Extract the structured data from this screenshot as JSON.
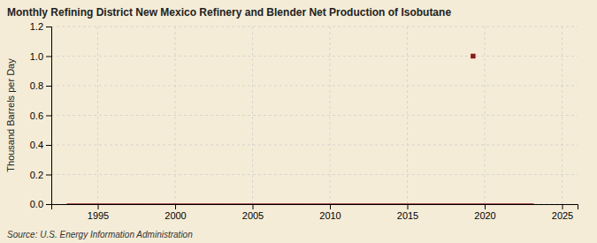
{
  "chart_data": {
    "type": "line",
    "title": "Monthly Refining District New Mexico Refinery and Blender Net Production of Isobutane",
    "ylabel": "Thousand Barrels per Day",
    "annotation": "Source: U.S. Energy Information Administration",
    "xlim": [
      1992,
      2026
    ],
    "xticks": [
      1995,
      2000,
      2005,
      2010,
      2015,
      2020,
      2025
    ],
    "ylim": [
      0.0,
      1.2
    ],
    "yticks": [
      {
        "value": 0.0,
        "label": "0.0"
      },
      0.2,
      0.4,
      0.6,
      0.8,
      {
        "value": 1.0,
        "label": "1.0"
      },
      1.2
    ],
    "grid": true,
    "series": [
      {
        "type": "line",
        "color": "#8b1a1a",
        "x": [
          1993.0,
          1993.08,
          1993.17,
          1993.25,
          1993.33,
          1993.42,
          1993.5,
          1993.58,
          1993.67,
          1993.75,
          1993.83,
          1993.92,
          1994.0,
          1994.08,
          1994.17,
          1994.25,
          1994.33,
          1994.42,
          1994.5,
          2004.0,
          2004.33,
          2004.67,
          2005.0,
          2005.33,
          2005.67,
          2006.0,
          2006.33,
          2006.67,
          2007.0,
          2007.33,
          2007.67,
          2008.0,
          2008.33,
          2008.67,
          2014.5,
          2014.67,
          2014.83,
          2015.0,
          2015.17,
          2015.33,
          2015.5,
          2015.67,
          2015.83,
          2016.0,
          2016.17,
          2016.33,
          2016.5,
          2016.67,
          2016.83,
          2017.0,
          2017.17,
          2017.33,
          2017.5,
          2017.67,
          2017.83,
          2018.0,
          2018.17,
          2018.33,
          2018.5,
          2018.67,
          2018.83,
          2019.0,
          2019.17,
          2019.33,
          2019.5,
          2019.67,
          2019.83,
          2020.0,
          2020.17,
          2020.33,
          2020.5,
          2020.67,
          2020.83,
          2021.0,
          2021.17,
          2021.33,
          2021.5,
          2022.0,
          2022.17,
          2022.33,
          2022.5,
          2022.67,
          2022.83,
          2023.0,
          2023.17
        ],
        "values": [
          0.0,
          0.0,
          0.0,
          0.0,
          0.0,
          0.0,
          0.0,
          0.0,
          0.0,
          0.0,
          0.0,
          0.0,
          0.0,
          0.0,
          0.0,
          0.0,
          0.0,
          0.0,
          0.0,
          0.0,
          0.0,
          0.0,
          0.0,
          0.0,
          0.0,
          0.0,
          0.0,
          0.0,
          0.0,
          0.0,
          0.0,
          0.0,
          0.0,
          0.0,
          0.0,
          0.0,
          0.0,
          0.0,
          0.0,
          0.0,
          0.0,
          0.0,
          0.0,
          0.0,
          0.0,
          0.0,
          0.0,
          0.0,
          0.0,
          0.0,
          0.0,
          0.0,
          0.0,
          0.0,
          0.0,
          0.0,
          0.0,
          0.0,
          0.0,
          0.0,
          0.0,
          0.0,
          0.0,
          0.0,
          0.0,
          0.0,
          0.0,
          0.0,
          0.0,
          0.0,
          0.0,
          0.0,
          0.0,
          0.0,
          0.0,
          0.0,
          0.0,
          0.0,
          0.0,
          0.0,
          0.0,
          0.0,
          0.0,
          0.0,
          0.0
        ]
      },
      {
        "type": "scatter",
        "marker": "square",
        "color": "#8b1a1a",
        "x": [
          2019.25
        ],
        "values": [
          1.0
        ]
      }
    ]
  }
}
